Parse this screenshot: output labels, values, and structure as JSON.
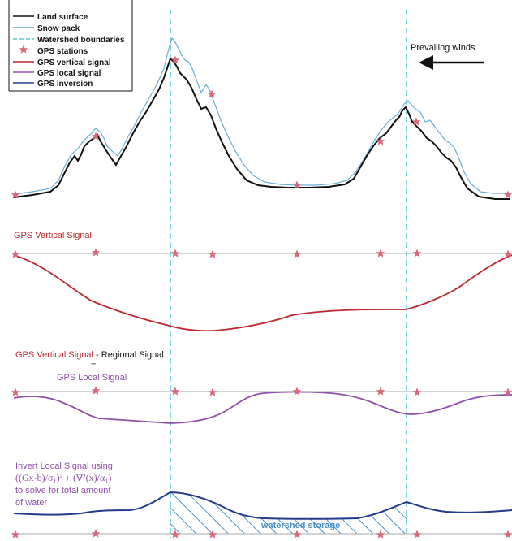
{
  "legend": {
    "land_surface": "Land surface",
    "snow_pack": "Snow pack",
    "watershed_boundaries": "Watershed boundaries",
    "gps_stations": "GPS stations",
    "gps_vertical_signal": "GPS vertical signal",
    "gps_local_signal": "GPS local signal",
    "gps_inversion": "GPS inversion"
  },
  "wind": {
    "label": "Prevailing winds"
  },
  "panel2": {
    "title": "GPS Vertical Signal"
  },
  "panel3": {
    "line1_red": "GPS Vertical Signal",
    "line1_black": " - Regional Signal",
    "equals": "=",
    "line2": "GPS Local Signal"
  },
  "panel4": {
    "line1": "Invert Local Signal using",
    "formula": "((Gx-b)/σ₁)² + (∇²(x)/α₁)",
    "line3": "to solve for total amount",
    "line4": "of water",
    "storage": "watershed storage"
  },
  "colors": {
    "land": "#111111",
    "snow": "#6aaed6",
    "watershed": "#5bc8d8",
    "station": "#d9667a",
    "vertical": "#c0262e",
    "local": "#8e50a8",
    "inversion": "#243a8a",
    "baseline": "#aaaaaa",
    "hatch": "#4a90c8"
  }
}
